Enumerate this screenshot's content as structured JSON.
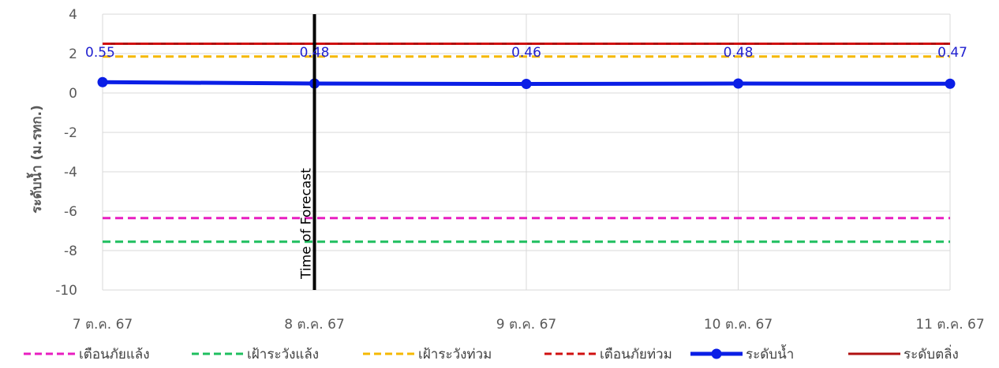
{
  "chart_data": {
    "type": "line",
    "categories": [
      "7 ต.ค. 67",
      "8 ต.ค. 67",
      "9 ต.ค. 67",
      "10 ต.ค. 67",
      "11 ต.ค. 67"
    ],
    "ylabel": "ระดับน้ำ (ม.รทก.)",
    "ylim": [
      -10,
      4
    ],
    "yticks": [
      4,
      2,
      0,
      -2,
      -4,
      -6,
      -8,
      -10
    ],
    "grid": true,
    "legend_position": "bottom",
    "vertical_marker": {
      "label": "Time of Forecast",
      "category": "8 ต.ค. 67",
      "color": "#000000"
    },
    "series": [
      {
        "name": "เตือนภัยแล้ง",
        "values": [
          -6.35,
          -6.35,
          -6.35,
          -6.35,
          -6.35
        ],
        "color": "#e81ec0",
        "style": "dashed"
      },
      {
        "name": "เฝ้าระวังแล้ง",
        "values": [
          -7.55,
          -7.55,
          -7.55,
          -7.55,
          -7.55
        ],
        "color": "#1fbf5f",
        "style": "dashed"
      },
      {
        "name": "เฝ้าระวังท่วม",
        "values": [
          1.85,
          1.85,
          1.85,
          1.85,
          1.85
        ],
        "color": "#f5b800",
        "style": "dashed"
      },
      {
        "name": "เตือนภัยท่วม",
        "values": [
          2.5,
          2.5,
          2.5,
          2.5,
          2.5
        ],
        "color": "#d01010",
        "style": "dashed"
      },
      {
        "name": "ระดับน้ำ",
        "values": [
          0.55,
          0.48,
          0.46,
          0.48,
          0.47
        ],
        "labels": [
          "0.55",
          "0.48",
          "0.46",
          "0.48",
          "0.47"
        ],
        "color": "#0a1ee6",
        "style": "solid-marker"
      },
      {
        "name": "ระดับตลิ่ง",
        "values": [
          2.5,
          2.5,
          2.5,
          2.5,
          2.5
        ],
        "color": "#b01010",
        "style": "solid"
      }
    ]
  }
}
